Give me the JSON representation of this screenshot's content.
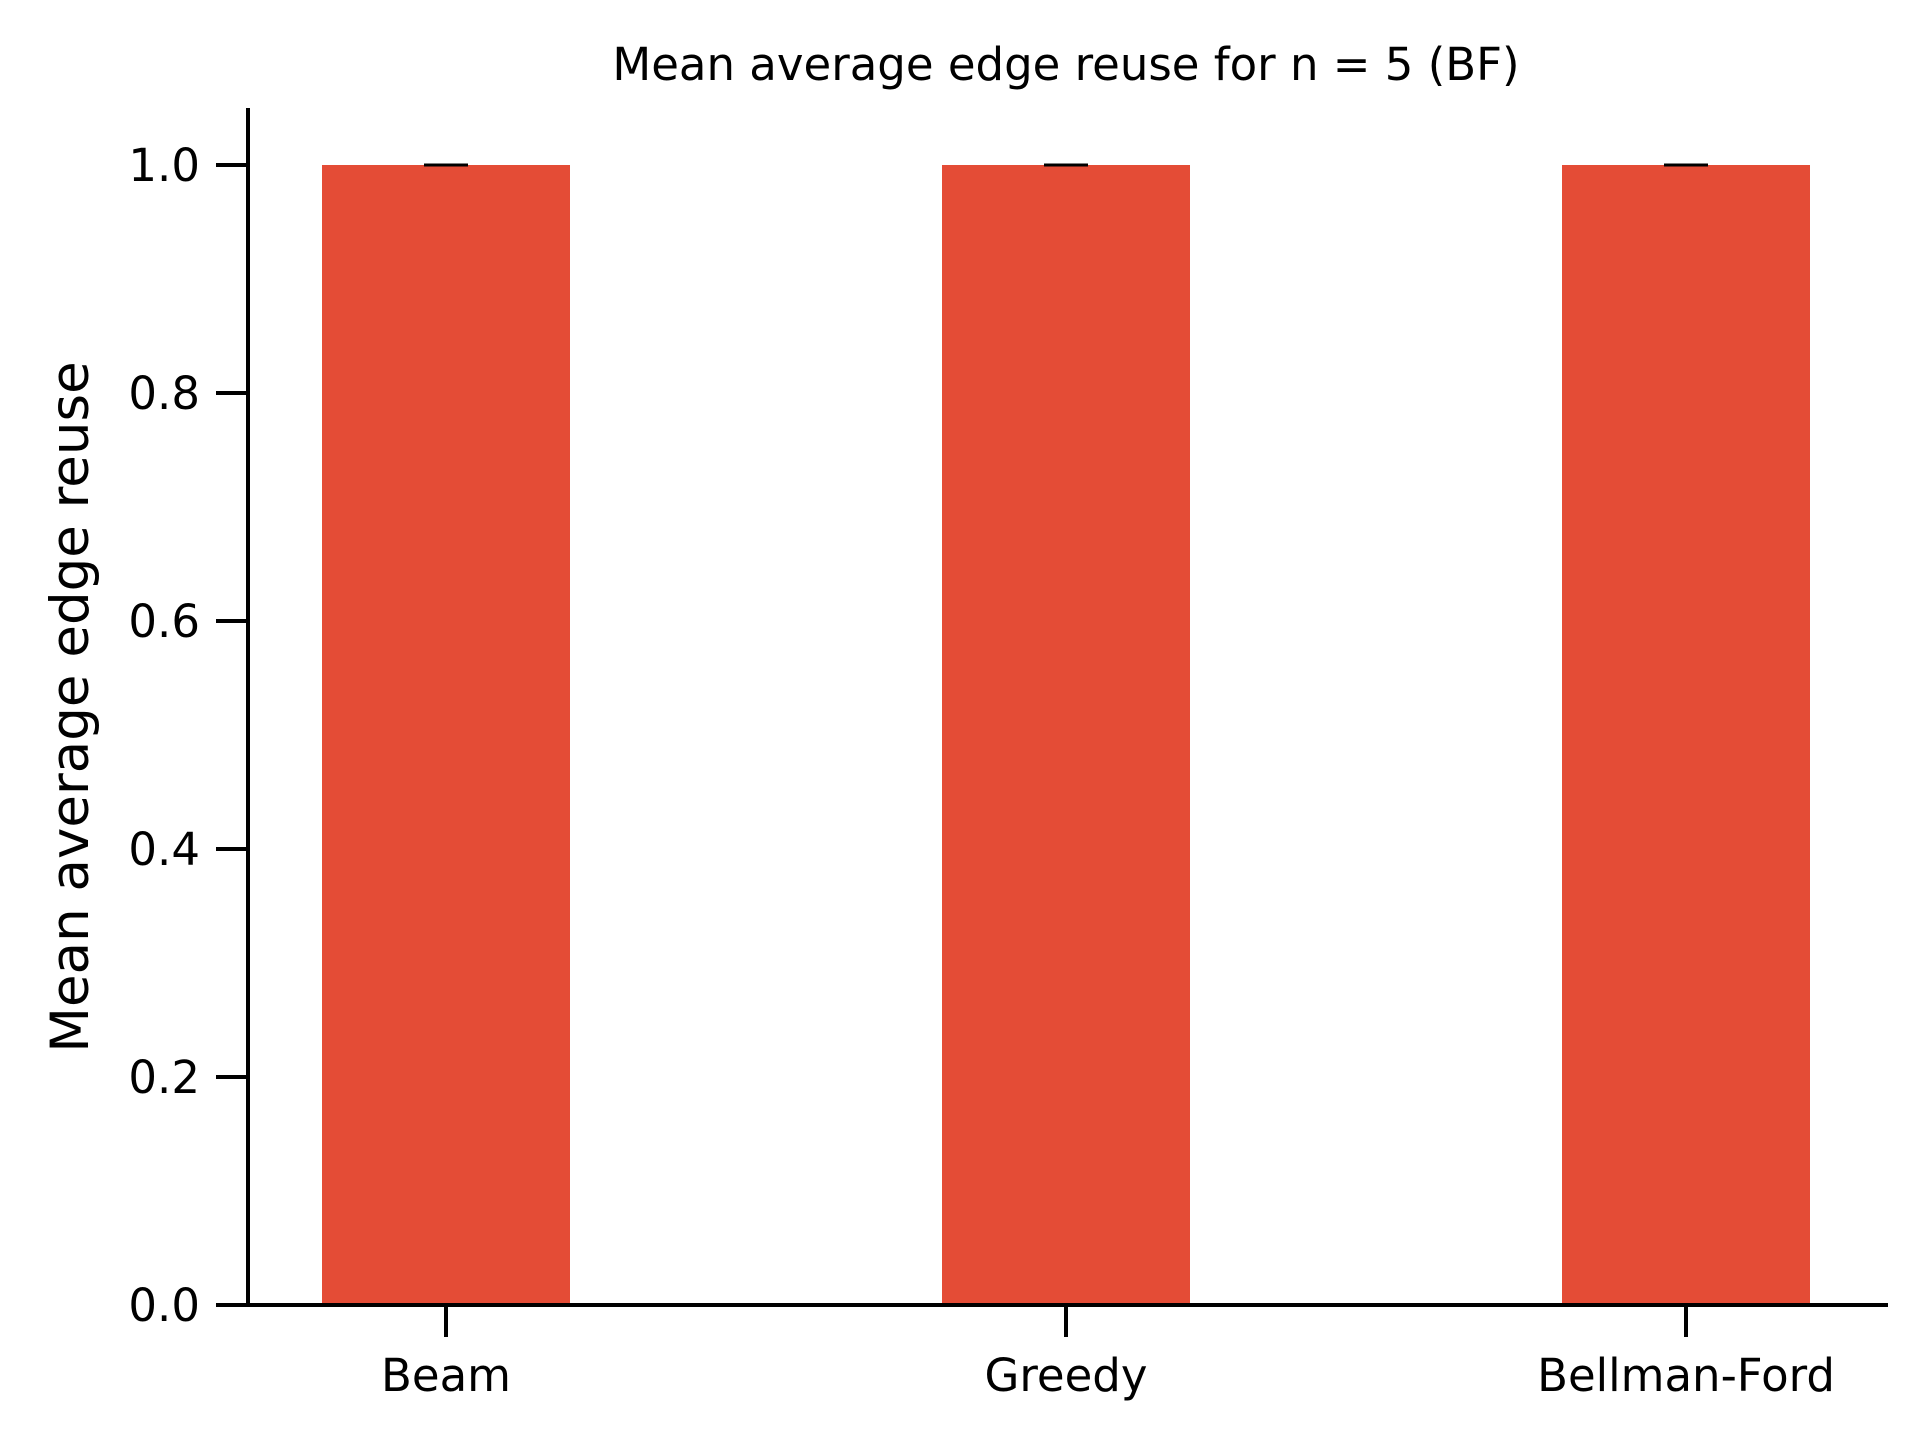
{
  "chart_data": {
    "type": "bar",
    "title": "Mean average edge reuse for n = 5 (BF)",
    "xlabel": "",
    "ylabel": "Mean average edge reuse",
    "categories": [
      "Beam",
      "Greedy",
      "Bellman-Ford"
    ],
    "values": [
      1.0,
      1.0,
      1.0
    ],
    "errors": [
      0.0,
      0.0,
      0.0
    ],
    "ylim": [
      0,
      1.05
    ],
    "yticks": [
      0.0,
      0.2,
      0.4,
      0.6,
      0.8,
      1.0
    ],
    "ytick_labels": [
      "0.0",
      "0.2",
      "0.4",
      "0.6",
      "0.8",
      "1.0"
    ],
    "grid": false,
    "legend": "none",
    "colors": {
      "bar": "#e44c36",
      "axis": "#000000",
      "errorbar": "#000000"
    }
  }
}
